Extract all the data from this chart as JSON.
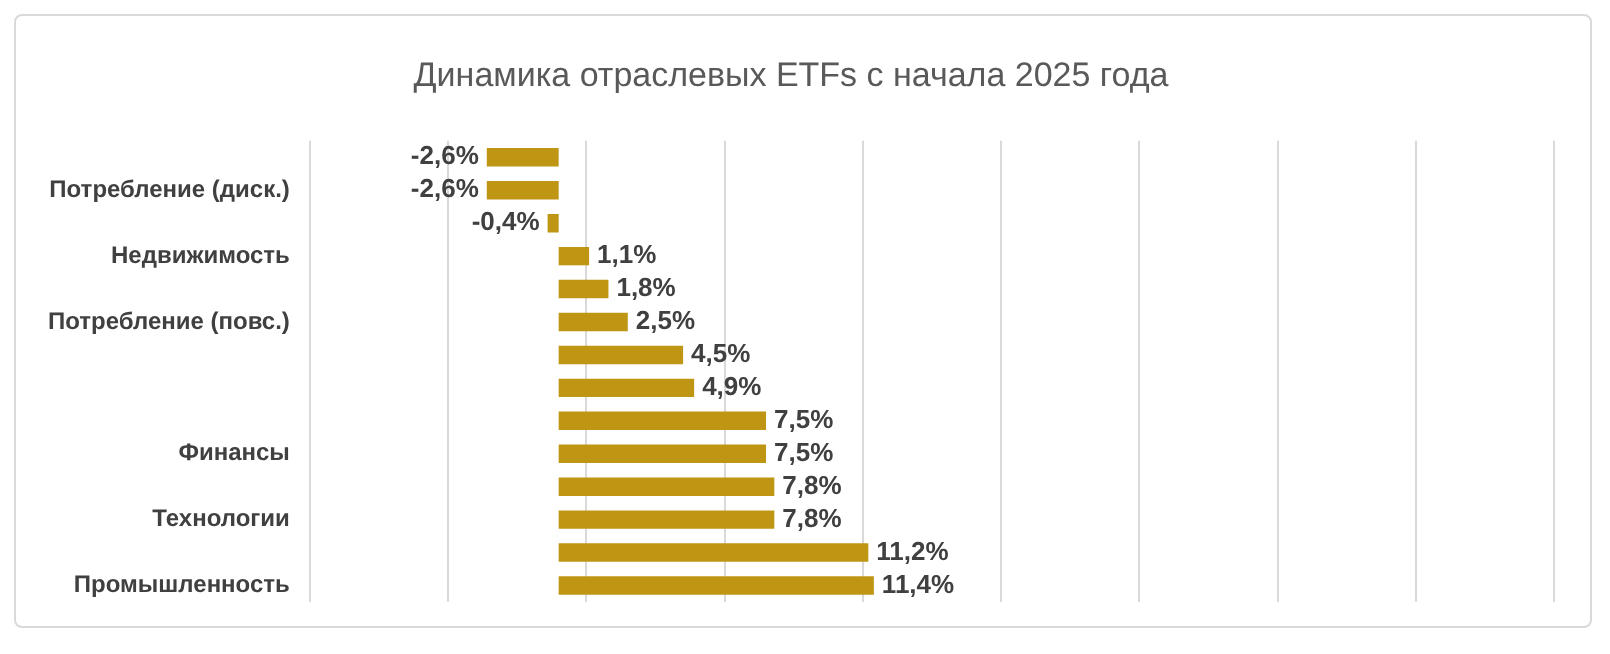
{
  "chart_data": {
    "type": "bar",
    "orientation": "horizontal",
    "title": "Динамика отраслевых ETFs с начала 2025 года",
    "categories": [
      null,
      "Потребление (диск.)",
      null,
      "Недвижимость",
      null,
      "Потребление (повс.)",
      null,
      null,
      null,
      "Финансы",
      null,
      "Технологии",
      null,
      "Промышленность"
    ],
    "values": [
      -2.6,
      -2.6,
      -0.4,
      1.1,
      1.8,
      2.5,
      4.5,
      4.9,
      7.5,
      7.5,
      7.8,
      7.8,
      11.2,
      11.4
    ],
    "value_labels": [
      "-2,6%",
      "-2,6%",
      "-0,4%",
      "1,1%",
      "1,8%",
      "2,5%",
      "4,5%",
      "4,9%",
      "7,5%",
      "7,5%",
      "7,8%",
      "7,8%",
      "11,2%",
      "11,4%"
    ],
    "color": "#bf9614",
    "xlim": [
      -9,
      36
    ],
    "xticks": [
      {
        "value": -9,
        "label": null
      },
      {
        "value": -4,
        "label": null
      },
      {
        "value": 1,
        "label": null
      },
      {
        "value": 6,
        "label": null
      },
      {
        "value": 11,
        "label": null
      },
      {
        "value": 16,
        "label": null
      },
      {
        "value": 21,
        "label": null
      },
      {
        "value": 26,
        "label": null
      },
      {
        "value": 31,
        "label": null
      },
      {
        "value": 36,
        "label": null
      }
    ],
    "grid": "x",
    "legend": false,
    "tick_labels": "y"
  }
}
